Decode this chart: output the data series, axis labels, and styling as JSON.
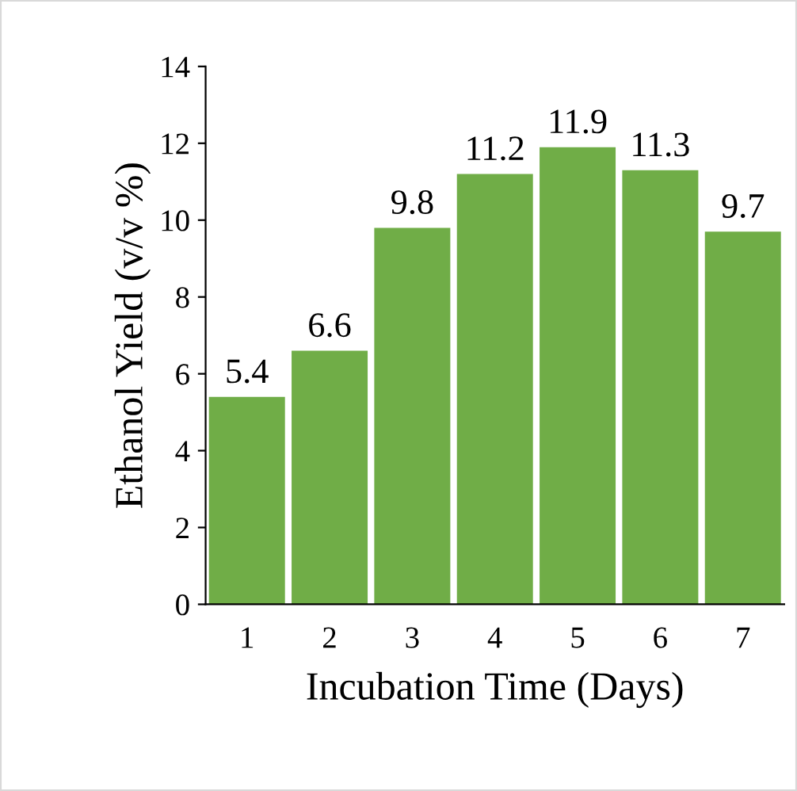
{
  "chart_data": {
    "type": "bar",
    "xlabel": "Incubation Time (Days)",
    "ylabel": "Ethanol Yield (v/v %)",
    "categories": [
      "1",
      "2",
      "3",
      "4",
      "5",
      "6",
      "7"
    ],
    "values": [
      5.4,
      6.6,
      9.8,
      11.2,
      11.9,
      11.3,
      9.7
    ],
    "color": "#70ad47",
    "ylim": [
      0,
      14
    ],
    "yticks": [
      0,
      2,
      4,
      6,
      8,
      10,
      12,
      14
    ],
    "grid": false,
    "data_labels": true
  }
}
